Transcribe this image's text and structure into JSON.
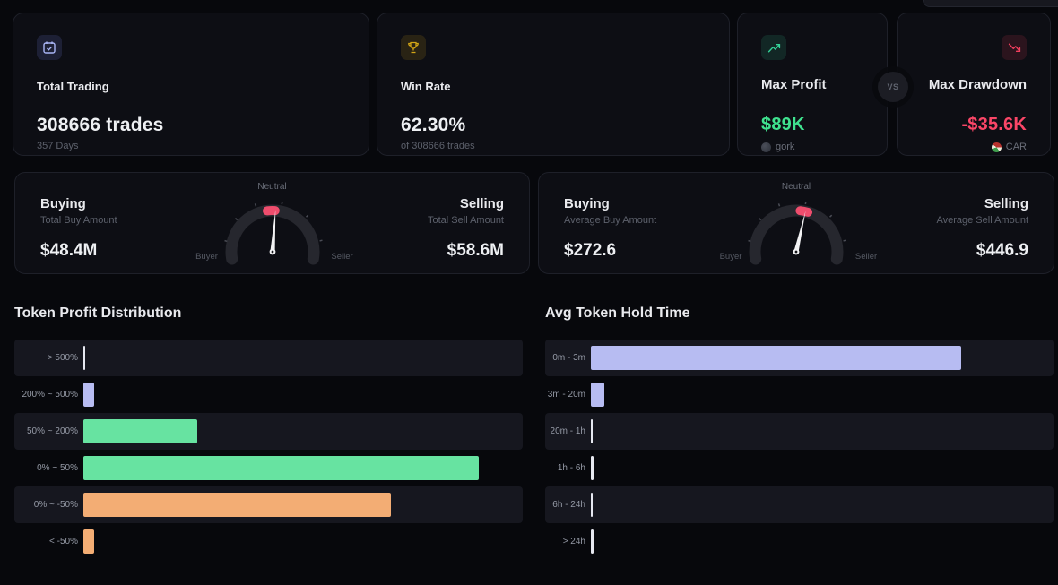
{
  "stat_cards": [
    {
      "title": "Total Trading",
      "value": "308666 trades",
      "subtitle": "357 Days",
      "icon": "calendar-check-icon"
    },
    {
      "title": "Win Rate",
      "value": "62.30%",
      "subtitle": "of 308666 trades",
      "icon": "trophy-icon"
    },
    {
      "title": "Max Profit",
      "value": "$89K",
      "subtitle": "gork",
      "icon": "trend-up-icon",
      "value_color": "#3fe28f"
    },
    {
      "title": "Max Drawdown",
      "value": "-$35.6K",
      "subtitle": "CAR",
      "icon": "trend-down-icon",
      "value_color": "#fa4667"
    }
  ],
  "vs_badge": {
    "label": "VS"
  },
  "gauge_cards": [
    {
      "left": {
        "title": "Buying",
        "subtitle": "Total Buy Amount",
        "value": "$48.4M"
      },
      "right": {
        "title": "Selling",
        "subtitle": "Total Sell Amount",
        "value": "$58.6M"
      },
      "gauge_labels": {
        "top": "Neutral",
        "bottom_left": "Buyer",
        "bottom_right": "Seller"
      },
      "needle_deg": 4,
      "marker_deg": -2
    },
    {
      "left": {
        "title": "Buying",
        "subtitle": "Average Buy Amount",
        "value": "$272.6"
      },
      "right": {
        "title": "Selling",
        "subtitle": "Average Sell Amount",
        "value": "$446.9"
      },
      "gauge_labels": {
        "top": "Neutral",
        "bottom_left": "Buyer",
        "bottom_right": "Seller"
      },
      "needle_deg": 13,
      "marker_deg": 11
    }
  ],
  "chart_data": [
    {
      "type": "bar",
      "orientation": "horizontal",
      "title": "Token Profit Distribution",
      "categories": [
        "> 500%",
        "200% ~ 500%",
        "50% ~ 200%",
        "0% ~ 50%",
        "0% ~ -50%",
        "< -50%"
      ],
      "values_pct": [
        0.4,
        2.5,
        26,
        90,
        70,
        2.5
      ],
      "bar_colors": [
        "#e6e8f0",
        "#b7bcf2",
        "#67e3a1",
        "#67e3a1",
        "#f3ad74",
        "#f3ad74"
      ],
      "axis_note": "no numeric axis shown; values are relative bar lengths as % of plot width",
      "grid": false,
      "legend": false
    },
    {
      "type": "bar",
      "orientation": "horizontal",
      "title": "Avg Token Hold Time",
      "categories": [
        "0m - 3m",
        "3m - 20m",
        "20m - 1h",
        "1h - 6h",
        "6h - 24h",
        "> 24h"
      ],
      "values_pct": [
        80,
        2.9,
        0.4,
        0.5,
        0.3,
        0.5
      ],
      "bar_colors": [
        "#b7bcf2",
        "#b7bcf2",
        "#e6e8f0",
        "#e6e8f0",
        "#e6e8f0",
        "#e6e8f0"
      ],
      "axis_note": "no numeric axis shown; values are relative bar lengths as % of plot width",
      "grid": false,
      "legend": false
    }
  ],
  "colors": {
    "page_bg": "#07080c",
    "card_bg": "#0d0e14",
    "card_border": "#1e2029",
    "stripe": "#16171f",
    "green_value": "#3fe28f",
    "red_value": "#fa4667",
    "gauge_arc": "#26272e",
    "gauge_marker": "#ef4d6d",
    "bar_green": "#67e3a1",
    "bar_orange": "#f3ad74",
    "bar_lavender": "#b7bcf2"
  }
}
